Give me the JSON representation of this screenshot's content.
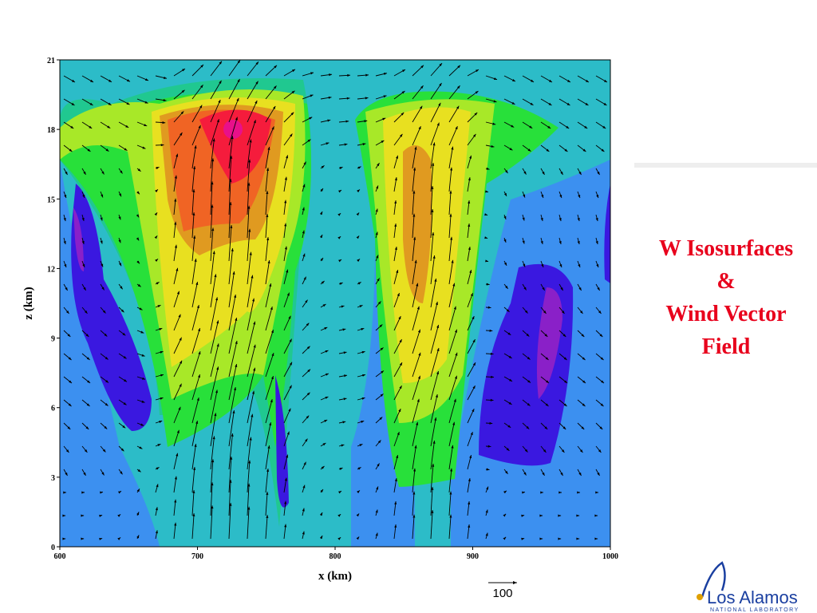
{
  "chart_data": {
    "type": "contour",
    "xlabel": "x (km)",
    "ylabel": "z (km)",
    "xlim": [
      600,
      1000
    ],
    "ylim": [
      0,
      21
    ],
    "xticks": [
      600,
      700,
      800,
      900,
      1000
    ],
    "yticks": [
      0,
      3,
      6,
      9,
      12,
      15,
      18,
      21
    ],
    "reference_vector": 100
  },
  "slide": {
    "title_lines": [
      "W Isosurfaces",
      "&",
      "Wind Vector",
      "Field"
    ],
    "logo": {
      "name": "Los Alamos",
      "subtitle": "NATIONAL LABORATORY"
    }
  }
}
